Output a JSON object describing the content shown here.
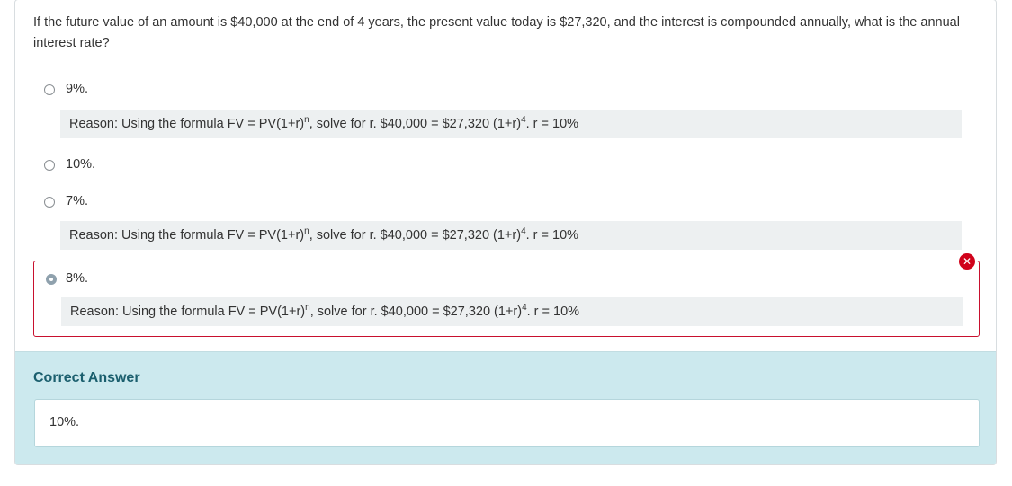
{
  "question": {
    "text": "If the future value of an amount is $40,000 at the end of 4 years, the present value today is $27,320, and the interest is compounded annually, what is the annual interest rate?"
  },
  "options": [
    {
      "label": "9%.",
      "selected": false,
      "reason_prefix": "Reason: Using the formula FV = PV(1+r)",
      "reason_exp1": "n",
      "reason_mid": ", solve for r. $40,000 = $27,320 (1+r)",
      "reason_exp2": "4",
      "reason_suffix": ". r = 10%"
    },
    {
      "label": "10%.",
      "selected": false
    },
    {
      "label": "7%.",
      "selected": false,
      "reason_prefix": "Reason: Using the formula FV = PV(1+r)",
      "reason_exp1": "n",
      "reason_mid": ", solve for r. $40,000 = $27,320 (1+r)",
      "reason_exp2": "4",
      "reason_suffix": ". r = 10%"
    },
    {
      "label": "8%.",
      "selected": true,
      "status": "incorrect",
      "reason_prefix": "Reason: Using the formula FV = PV(1+r)",
      "reason_exp1": "n",
      "reason_mid": ", solve for r. $40,000 = $27,320 (1+r)",
      "reason_exp2": "4",
      "reason_suffix": ". r = 10%"
    }
  ],
  "status_icons": {
    "wrong": "close-icon",
    "wrong_glyph": "✕",
    "wrong_color": "#d0021b"
  },
  "correct_answer": {
    "title": "Correct Answer",
    "value": "10%."
  }
}
